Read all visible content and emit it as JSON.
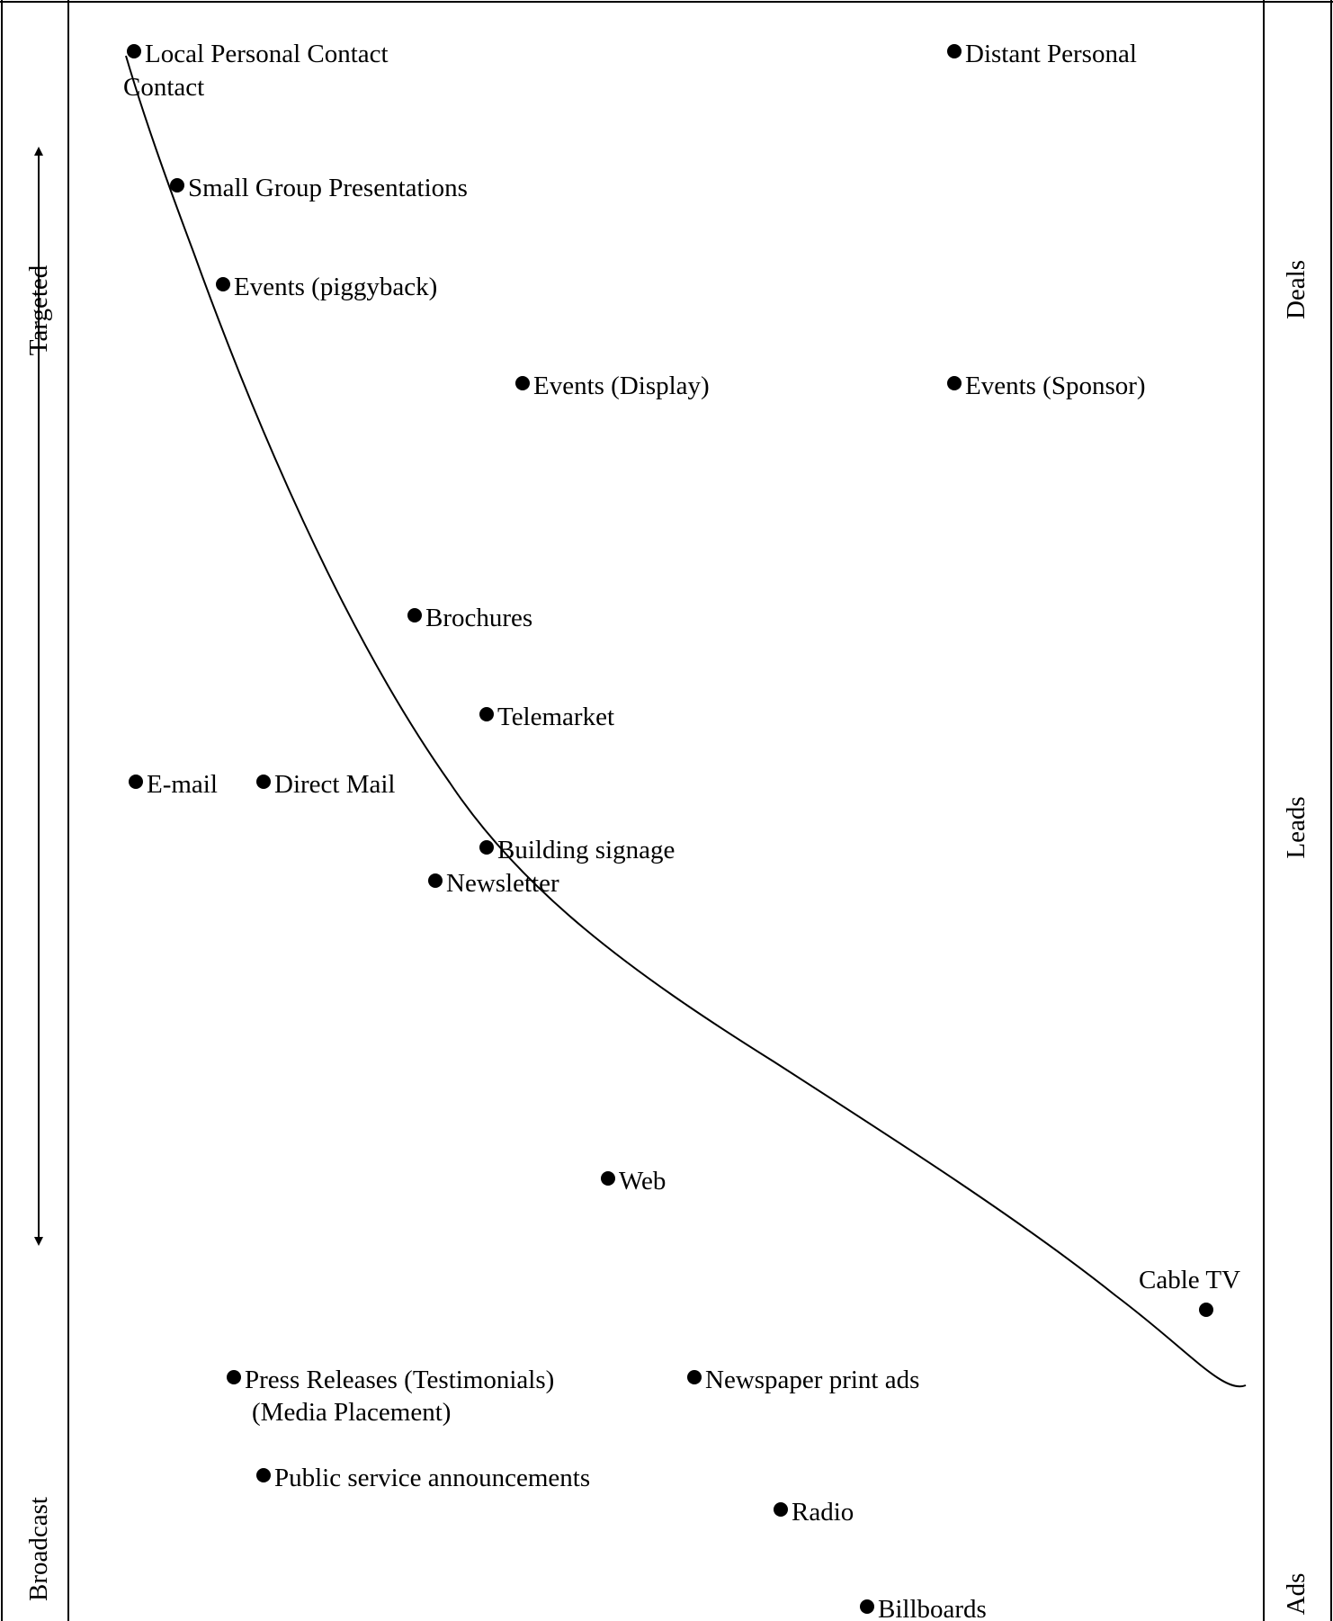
{
  "left_axis": {
    "top_label": "Targeted",
    "bottom_label": "Broadcast"
  },
  "right_axis": {
    "labels": [
      "Deals",
      "Leads",
      "Ads"
    ]
  },
  "items": [
    {
      "id": "local-personal-contact",
      "lines": [
        "Local Personal Contact",
        "Contact"
      ]
    },
    {
      "id": "distant-personal",
      "lines": [
        "Distant Personal"
      ]
    },
    {
      "id": "small-group-presentations",
      "lines": [
        "Small Group Presentations"
      ]
    },
    {
      "id": "events-piggyback",
      "lines": [
        "Events (piggyback)"
      ]
    },
    {
      "id": "events-display",
      "lines": [
        "Events (Display)"
      ]
    },
    {
      "id": "events-sponsor",
      "lines": [
        "Events (Sponsor)"
      ]
    },
    {
      "id": "brochures",
      "lines": [
        "Brochures"
      ]
    },
    {
      "id": "telemarket",
      "lines": [
        "Telemarket"
      ]
    },
    {
      "id": "e-mail",
      "lines": [
        "E-mail"
      ]
    },
    {
      "id": "direct-mail",
      "lines": [
        "Direct Mail"
      ]
    },
    {
      "id": "building-signage",
      "lines": [
        "Building signage"
      ]
    },
    {
      "id": "newsletter",
      "lines": [
        "Newsletter"
      ]
    },
    {
      "id": "web",
      "lines": [
        "Web"
      ]
    },
    {
      "id": "cable-tv",
      "lines": [
        "Cable TV"
      ]
    },
    {
      "id": "press-releases",
      "lines": [
        "Press Releases (Testimonials)",
        "(Media Placement)"
      ]
    },
    {
      "id": "newspaper-print-ads",
      "lines": [
        "Newspaper print ads"
      ]
    },
    {
      "id": "public-service-announcements",
      "lines": [
        "Public service announcements"
      ]
    },
    {
      "id": "radio",
      "lines": [
        "Radio"
      ]
    },
    {
      "id": "billboards",
      "lines": [
        "Billboards"
      ]
    }
  ]
}
